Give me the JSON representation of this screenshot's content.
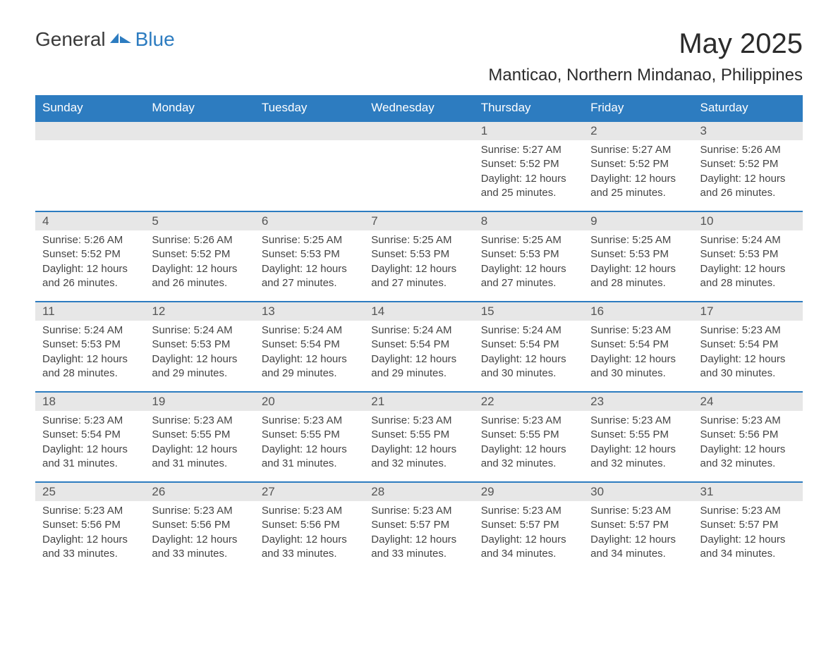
{
  "logo": {
    "text_general": "General",
    "text_blue": "Blue",
    "swoosh_color": "#2d7cc0"
  },
  "title": "May 2025",
  "location": "Manticao, Northern Mindanao, Philippines",
  "colors": {
    "header_bg": "#2d7cc0",
    "header_text": "#ffffff",
    "daybar_bg": "#e7e7e7",
    "daybar_text": "#555555",
    "body_text": "#444444",
    "row_border": "#2d7cc0",
    "page_bg": "#ffffff",
    "title_text": "#2b2b2b"
  },
  "weekdays": [
    "Sunday",
    "Monday",
    "Tuesday",
    "Wednesday",
    "Thursday",
    "Friday",
    "Saturday"
  ],
  "weeks": [
    [
      {
        "day": "",
        "sunrise": "",
        "sunset": "",
        "daylight": ""
      },
      {
        "day": "",
        "sunrise": "",
        "sunset": "",
        "daylight": ""
      },
      {
        "day": "",
        "sunrise": "",
        "sunset": "",
        "daylight": ""
      },
      {
        "day": "",
        "sunrise": "",
        "sunset": "",
        "daylight": ""
      },
      {
        "day": "1",
        "sunrise": "Sunrise: 5:27 AM",
        "sunset": "Sunset: 5:52 PM",
        "daylight": "Daylight: 12 hours and 25 minutes."
      },
      {
        "day": "2",
        "sunrise": "Sunrise: 5:27 AM",
        "sunset": "Sunset: 5:52 PM",
        "daylight": "Daylight: 12 hours and 25 minutes."
      },
      {
        "day": "3",
        "sunrise": "Sunrise: 5:26 AM",
        "sunset": "Sunset: 5:52 PM",
        "daylight": "Daylight: 12 hours and 26 minutes."
      }
    ],
    [
      {
        "day": "4",
        "sunrise": "Sunrise: 5:26 AM",
        "sunset": "Sunset: 5:52 PM",
        "daylight": "Daylight: 12 hours and 26 minutes."
      },
      {
        "day": "5",
        "sunrise": "Sunrise: 5:26 AM",
        "sunset": "Sunset: 5:52 PM",
        "daylight": "Daylight: 12 hours and 26 minutes."
      },
      {
        "day": "6",
        "sunrise": "Sunrise: 5:25 AM",
        "sunset": "Sunset: 5:53 PM",
        "daylight": "Daylight: 12 hours and 27 minutes."
      },
      {
        "day": "7",
        "sunrise": "Sunrise: 5:25 AM",
        "sunset": "Sunset: 5:53 PM",
        "daylight": "Daylight: 12 hours and 27 minutes."
      },
      {
        "day": "8",
        "sunrise": "Sunrise: 5:25 AM",
        "sunset": "Sunset: 5:53 PM",
        "daylight": "Daylight: 12 hours and 27 minutes."
      },
      {
        "day": "9",
        "sunrise": "Sunrise: 5:25 AM",
        "sunset": "Sunset: 5:53 PM",
        "daylight": "Daylight: 12 hours and 28 minutes."
      },
      {
        "day": "10",
        "sunrise": "Sunrise: 5:24 AM",
        "sunset": "Sunset: 5:53 PM",
        "daylight": "Daylight: 12 hours and 28 minutes."
      }
    ],
    [
      {
        "day": "11",
        "sunrise": "Sunrise: 5:24 AM",
        "sunset": "Sunset: 5:53 PM",
        "daylight": "Daylight: 12 hours and 28 minutes."
      },
      {
        "day": "12",
        "sunrise": "Sunrise: 5:24 AM",
        "sunset": "Sunset: 5:53 PM",
        "daylight": "Daylight: 12 hours and 29 minutes."
      },
      {
        "day": "13",
        "sunrise": "Sunrise: 5:24 AM",
        "sunset": "Sunset: 5:54 PM",
        "daylight": "Daylight: 12 hours and 29 minutes."
      },
      {
        "day": "14",
        "sunrise": "Sunrise: 5:24 AM",
        "sunset": "Sunset: 5:54 PM",
        "daylight": "Daylight: 12 hours and 29 minutes."
      },
      {
        "day": "15",
        "sunrise": "Sunrise: 5:24 AM",
        "sunset": "Sunset: 5:54 PM",
        "daylight": "Daylight: 12 hours and 30 minutes."
      },
      {
        "day": "16",
        "sunrise": "Sunrise: 5:23 AM",
        "sunset": "Sunset: 5:54 PM",
        "daylight": "Daylight: 12 hours and 30 minutes."
      },
      {
        "day": "17",
        "sunrise": "Sunrise: 5:23 AM",
        "sunset": "Sunset: 5:54 PM",
        "daylight": "Daylight: 12 hours and 30 minutes."
      }
    ],
    [
      {
        "day": "18",
        "sunrise": "Sunrise: 5:23 AM",
        "sunset": "Sunset: 5:54 PM",
        "daylight": "Daylight: 12 hours and 31 minutes."
      },
      {
        "day": "19",
        "sunrise": "Sunrise: 5:23 AM",
        "sunset": "Sunset: 5:55 PM",
        "daylight": "Daylight: 12 hours and 31 minutes."
      },
      {
        "day": "20",
        "sunrise": "Sunrise: 5:23 AM",
        "sunset": "Sunset: 5:55 PM",
        "daylight": "Daylight: 12 hours and 31 minutes."
      },
      {
        "day": "21",
        "sunrise": "Sunrise: 5:23 AM",
        "sunset": "Sunset: 5:55 PM",
        "daylight": "Daylight: 12 hours and 32 minutes."
      },
      {
        "day": "22",
        "sunrise": "Sunrise: 5:23 AM",
        "sunset": "Sunset: 5:55 PM",
        "daylight": "Daylight: 12 hours and 32 minutes."
      },
      {
        "day": "23",
        "sunrise": "Sunrise: 5:23 AM",
        "sunset": "Sunset: 5:55 PM",
        "daylight": "Daylight: 12 hours and 32 minutes."
      },
      {
        "day": "24",
        "sunrise": "Sunrise: 5:23 AM",
        "sunset": "Sunset: 5:56 PM",
        "daylight": "Daylight: 12 hours and 32 minutes."
      }
    ],
    [
      {
        "day": "25",
        "sunrise": "Sunrise: 5:23 AM",
        "sunset": "Sunset: 5:56 PM",
        "daylight": "Daylight: 12 hours and 33 minutes."
      },
      {
        "day": "26",
        "sunrise": "Sunrise: 5:23 AM",
        "sunset": "Sunset: 5:56 PM",
        "daylight": "Daylight: 12 hours and 33 minutes."
      },
      {
        "day": "27",
        "sunrise": "Sunrise: 5:23 AM",
        "sunset": "Sunset: 5:56 PM",
        "daylight": "Daylight: 12 hours and 33 minutes."
      },
      {
        "day": "28",
        "sunrise": "Sunrise: 5:23 AM",
        "sunset": "Sunset: 5:57 PM",
        "daylight": "Daylight: 12 hours and 33 minutes."
      },
      {
        "day": "29",
        "sunrise": "Sunrise: 5:23 AM",
        "sunset": "Sunset: 5:57 PM",
        "daylight": "Daylight: 12 hours and 34 minutes."
      },
      {
        "day": "30",
        "sunrise": "Sunrise: 5:23 AM",
        "sunset": "Sunset: 5:57 PM",
        "daylight": "Daylight: 12 hours and 34 minutes."
      },
      {
        "day": "31",
        "sunrise": "Sunrise: 5:23 AM",
        "sunset": "Sunset: 5:57 PM",
        "daylight": "Daylight: 12 hours and 34 minutes."
      }
    ]
  ]
}
